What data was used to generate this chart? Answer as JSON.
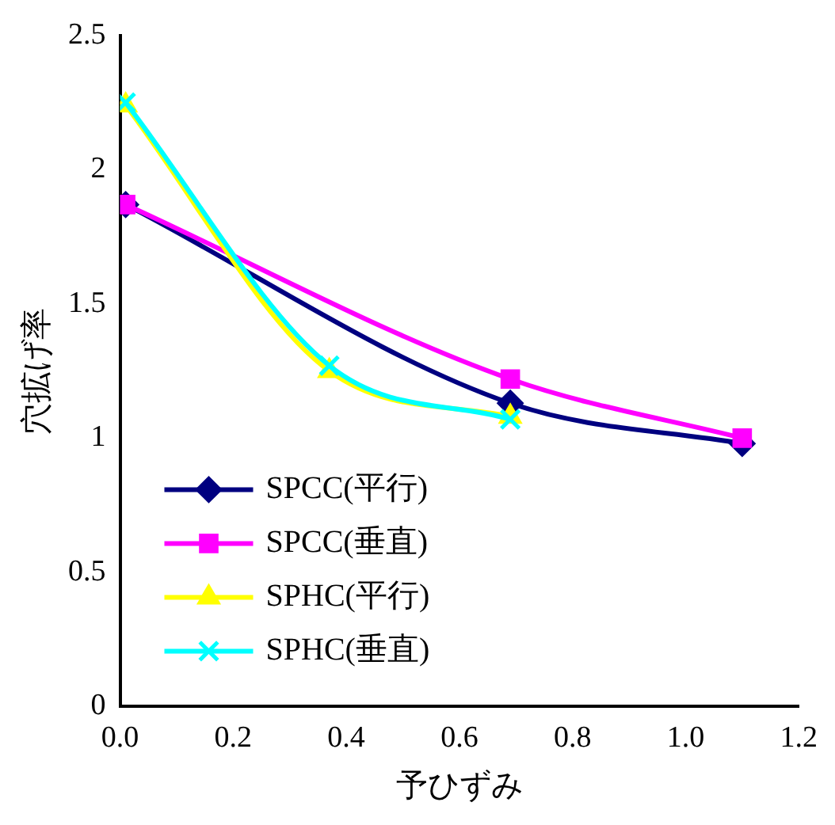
{
  "chart_data": {
    "type": "line",
    "xlabel": "予ひずみ",
    "ylabel": "穴拡げ率",
    "xlim": [
      0,
      1.2
    ],
    "xticks": [
      {
        "value": 0,
        "label": "0.0"
      },
      {
        "value": 0.2,
        "label": "0.2"
      },
      {
        "value": 0.4,
        "label": "0.4"
      },
      {
        "value": 0.6,
        "label": "0.6"
      },
      {
        "value": 0.8,
        "label": "0.8"
      },
      {
        "value": 1,
        "label": "1.0"
      },
      {
        "value": 1.2,
        "label": "1.2"
      }
    ],
    "ylim": [
      0,
      2.5
    ],
    "yticks": [
      0,
      0.5,
      1,
      1.5,
      2,
      2.5
    ],
    "grid": false,
    "legend": "bottom left",
    "series": [
      {
        "name": "SPCC(平行)",
        "color": "#000080",
        "marker": "diamond",
        "x": [
          0.01,
          0.69,
          1.1
        ],
        "values": [
          1.87,
          1.13,
          0.98
        ]
      },
      {
        "name": "SPCC(垂直)",
        "color": "#ff00ff",
        "marker": "square",
        "x": [
          0.01,
          0.69,
          1.1
        ],
        "values": [
          1.87,
          1.22,
          1.0
        ]
      },
      {
        "name": "SPHC(平行)",
        "color": "#ffff00",
        "marker": "triangle",
        "x": [
          0.01,
          0.37,
          0.69
        ],
        "values": [
          2.24,
          1.25,
          1.08
        ]
      },
      {
        "name": "SPHC(垂直)",
        "color": "#00ffff",
        "marker": "cross",
        "x": [
          0.01,
          0.37,
          0.69
        ],
        "values": [
          2.25,
          1.27,
          1.07
        ]
      }
    ]
  }
}
